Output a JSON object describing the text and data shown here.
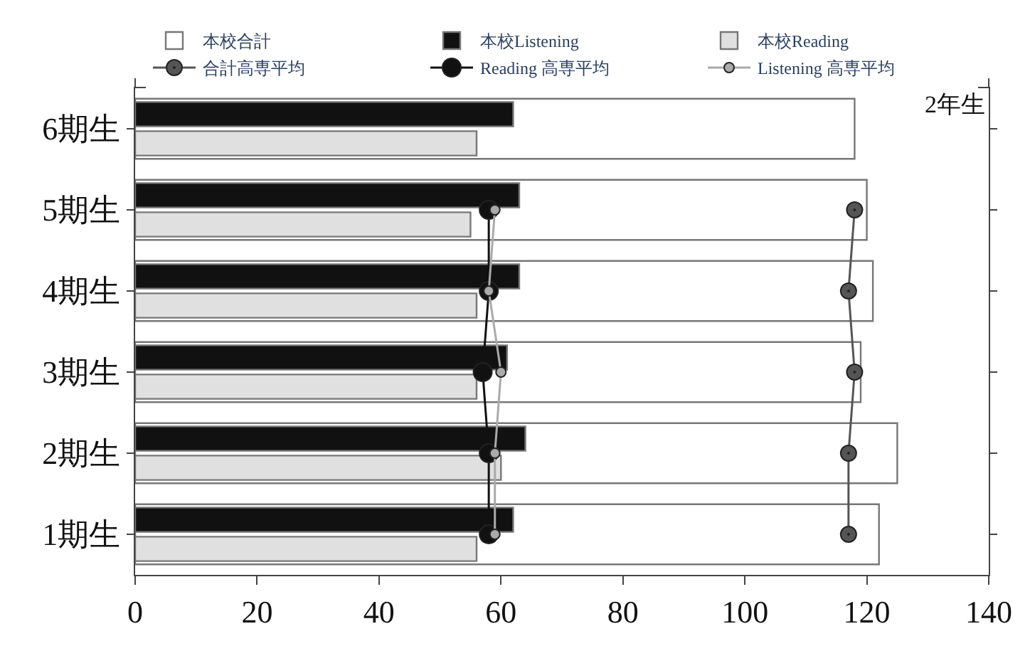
{
  "chart_data": {
    "type": "bar",
    "orientation": "horizontal",
    "categories": [
      "6期生",
      "5期生",
      "4期生",
      "3期生",
      "2期生",
      "1期生"
    ],
    "series": [
      {
        "name": "本校合計",
        "color": "#ffffff",
        "values": [
          118,
          120,
          121,
          119,
          125,
          122
        ]
      },
      {
        "name": "本校Listening",
        "color": "#111111",
        "values": [
          62,
          63,
          63,
          61,
          64,
          62
        ]
      },
      {
        "name": "本校Reading",
        "color": "#e0e0e0",
        "values": [
          56,
          55,
          56,
          56,
          60,
          56
        ]
      },
      {
        "name": "Listening 高専平均",
        "type": "line",
        "marker": "circle",
        "color": "#aaaaaa",
        "values": [
          null,
          59,
          58,
          60,
          59,
          59
        ]
      },
      {
        "name": "Reading 高専平均",
        "type": "line",
        "marker": "circle",
        "color": "#111111",
        "values": [
          null,
          58,
          58,
          57,
          58,
          58
        ]
      },
      {
        "name": "合計高専平均",
        "type": "line",
        "marker": "circle",
        "color": "#555555",
        "values": [
          null,
          118,
          117,
          118,
          117,
          117
        ]
      }
    ],
    "xlim": [
      0,
      140
    ],
    "xticks": [
      0,
      20,
      40,
      60,
      80,
      100,
      120,
      140
    ],
    "annotations": [
      "2年生"
    ],
    "legend": "top",
    "grid": false
  }
}
